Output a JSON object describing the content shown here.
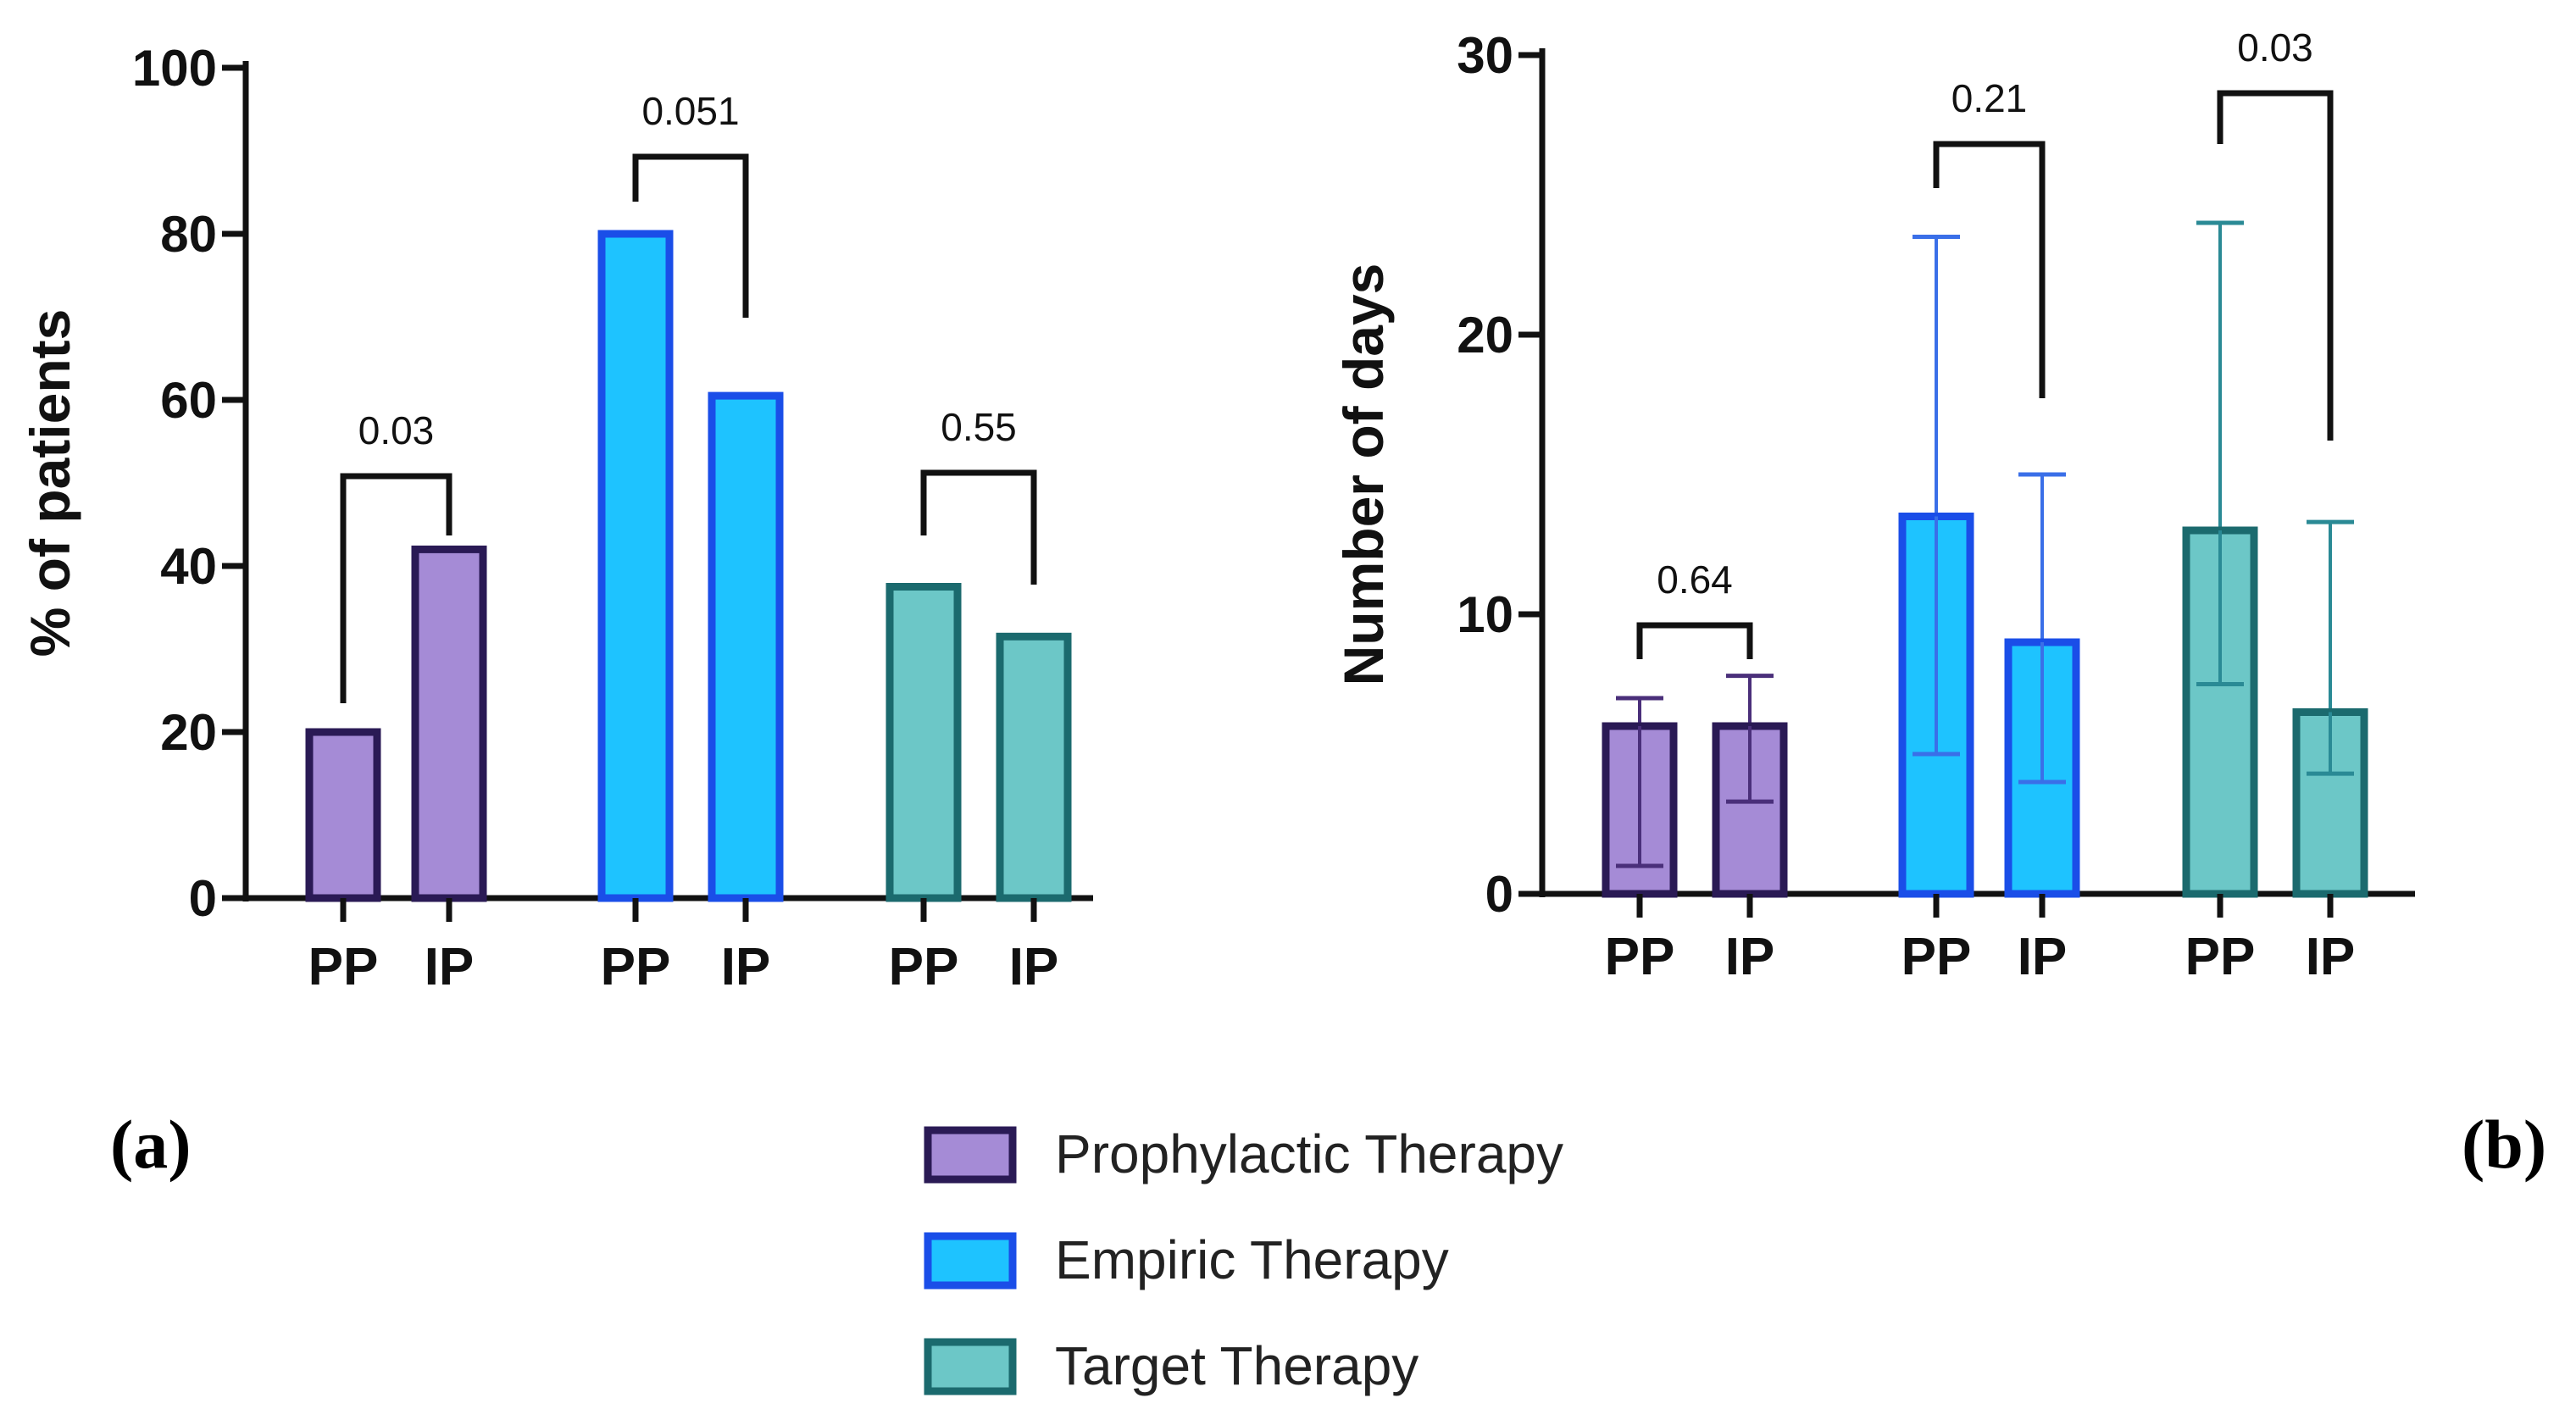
{
  "chart_data": [
    {
      "type": "bar",
      "panel": "(a)",
      "ylabel": "% of patients",
      "ylim": [
        0,
        100
      ],
      "yticks": [
        0,
        20,
        40,
        60,
        80,
        100
      ],
      "groups": [
        {
          "therapy": "Prophylactic Therapy",
          "categories": [
            "PP",
            "IP"
          ],
          "values": [
            20,
            42
          ],
          "p_value": "0.03"
        },
        {
          "therapy": "Empiric Therapy",
          "categories": [
            "PP",
            "IP"
          ],
          "values": [
            80,
            60.5
          ],
          "p_value": "0.051"
        },
        {
          "therapy": "Target Therapy",
          "categories": [
            "PP",
            "IP"
          ],
          "values": [
            37.5,
            31.5
          ],
          "p_value": "0.55"
        }
      ]
    },
    {
      "type": "bar",
      "panel": "(b)",
      "ylabel": "Number of days",
      "ylim": [
        0,
        30
      ],
      "yticks": [
        0,
        10,
        20,
        30
      ],
      "groups": [
        {
          "therapy": "Prophylactic Therapy",
          "categories": [
            "PP",
            "IP"
          ],
          "values": [
            6,
            6
          ],
          "error_low": [
            1,
            3.3
          ],
          "error_high": [
            7,
            7.8
          ],
          "p_value": "0.64"
        },
        {
          "therapy": "Empiric Therapy",
          "categories": [
            "PP",
            "IP"
          ],
          "values": [
            13.5,
            9
          ],
          "error_low": [
            5,
            4
          ],
          "error_high": [
            23.5,
            15
          ],
          "p_value": "0.21"
        },
        {
          "therapy": "Target Therapy",
          "categories": [
            "PP",
            "IP"
          ],
          "values": [
            13,
            6.5
          ],
          "error_low": [
            7.5,
            4.3
          ],
          "error_high": [
            24,
            13.3
          ],
          "p_value": "0.03"
        }
      ]
    }
  ],
  "legend": [
    {
      "label": "Prophylactic Therapy",
      "fill": "#a58bd6",
      "stroke": "#2a1a55"
    },
    {
      "label": "Empiric Therapy",
      "fill": "#1ec3ff",
      "stroke": "#1a4ee8"
    },
    {
      "label": "Target Therapy",
      "fill": "#6cc7c7",
      "stroke": "#1b6a6e"
    }
  ],
  "colors": {
    "Prophylactic Therapy": {
      "fill": "#a58bd6",
      "stroke": "#2a1a55",
      "err": "#4a2f7a"
    },
    "Empiric Therapy": {
      "fill": "#1ec3ff",
      "stroke": "#1a4ee8",
      "err": "#3a6fe8"
    },
    "Target Therapy": {
      "fill": "#6cc7c7",
      "stroke": "#1b6a6e",
      "err": "#2a8a95"
    }
  }
}
